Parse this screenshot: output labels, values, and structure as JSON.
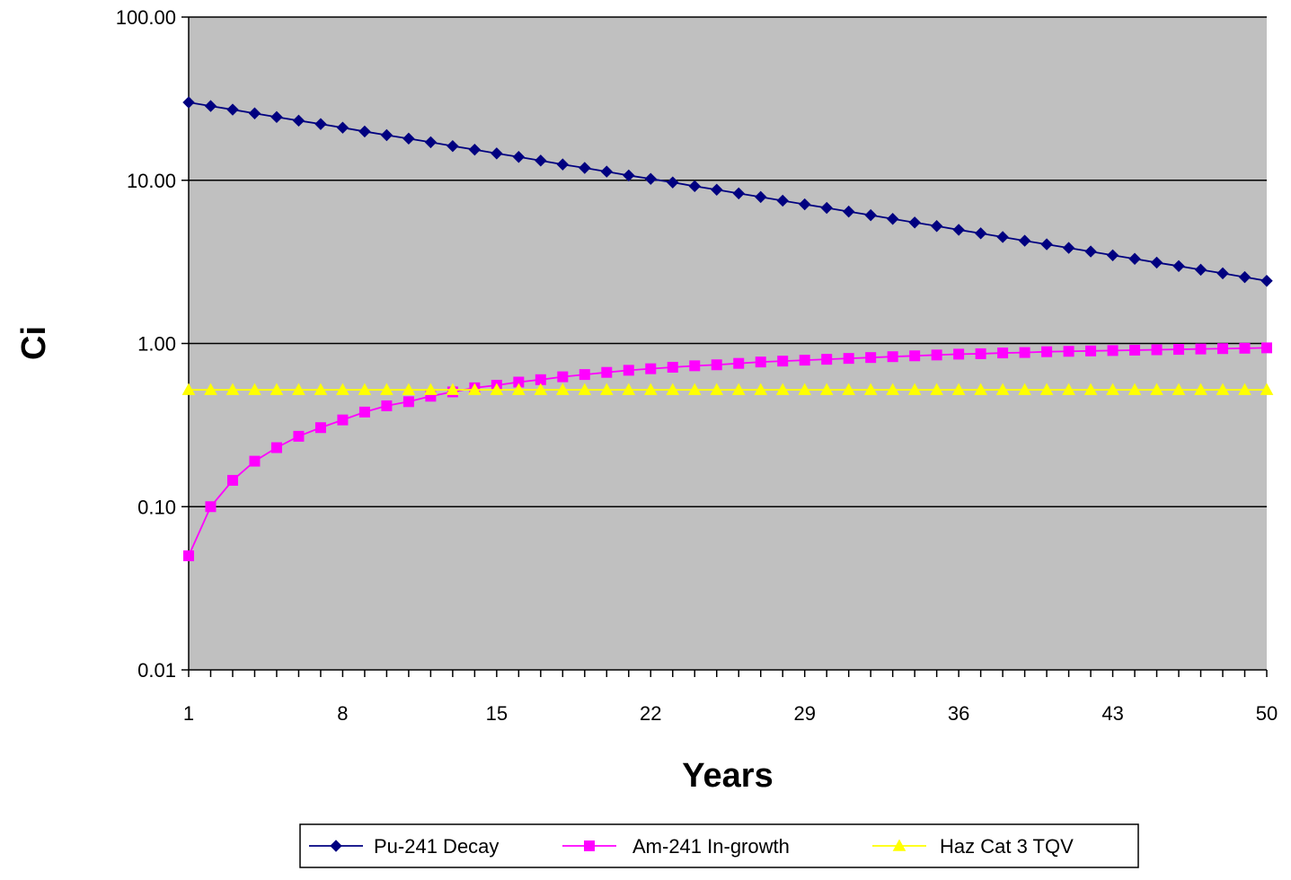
{
  "chart_data": {
    "type": "line",
    "title": "",
    "xlabel": "Years",
    "ylabel": "Ci",
    "y_scale": "log",
    "ylim": [
      0.01,
      100
    ],
    "y_ticks": [
      0.01,
      0.1,
      1,
      10,
      100
    ],
    "y_tick_labels": [
      "0.01",
      "0.10",
      "1.00",
      "10.00",
      "100.00"
    ],
    "xlim": [
      1,
      50
    ],
    "x_ticks": [
      1,
      8,
      15,
      22,
      29,
      36,
      43,
      50
    ],
    "x_tick_labels": [
      "1",
      "8",
      "15",
      "22",
      "29",
      "36",
      "43",
      "50"
    ],
    "grid": "horizontal major gridlines",
    "plot_background": "#c0c0c0",
    "legend_position": "bottom",
    "x": [
      1,
      2,
      3,
      4,
      5,
      6,
      7,
      8,
      9,
      10,
      11,
      12,
      13,
      14,
      15,
      16,
      17,
      18,
      19,
      20,
      21,
      22,
      23,
      24,
      25,
      26,
      27,
      28,
      29,
      30,
      31,
      32,
      33,
      34,
      35,
      36,
      37,
      38,
      39,
      40,
      41,
      42,
      43,
      44,
      45,
      46,
      47,
      48,
      49,
      50
    ],
    "series": [
      {
        "name": "Pu-241 Decay",
        "color": "#000080",
        "marker": "diamond",
        "values": [
          30.0,
          28.5,
          27.1,
          25.7,
          24.4,
          23.2,
          22.1,
          21.0,
          19.9,
          18.9,
          18.0,
          17.1,
          16.2,
          15.4,
          14.6,
          13.9,
          13.2,
          12.5,
          11.9,
          11.3,
          10.7,
          10.2,
          9.7,
          9.2,
          8.75,
          8.31,
          7.9,
          7.5,
          7.12,
          6.77,
          6.43,
          6.11,
          5.8,
          5.51,
          5.24,
          4.97,
          4.73,
          4.49,
          4.26,
          4.05,
          3.85,
          3.66,
          3.47,
          3.3,
          3.13,
          2.98,
          2.83,
          2.69,
          2.55,
          2.42
        ]
      },
      {
        "name": "Am-241 In-growth",
        "color": "#ff00ff",
        "marker": "square",
        "values": [
          0.05,
          0.1,
          0.145,
          0.19,
          0.23,
          0.27,
          0.305,
          0.34,
          0.38,
          0.415,
          0.44,
          0.475,
          0.505,
          0.535,
          0.555,
          0.58,
          0.6,
          0.625,
          0.645,
          0.665,
          0.685,
          0.7,
          0.715,
          0.73,
          0.74,
          0.755,
          0.77,
          0.78,
          0.79,
          0.8,
          0.81,
          0.82,
          0.83,
          0.84,
          0.85,
          0.86,
          0.865,
          0.875,
          0.88,
          0.89,
          0.895,
          0.9,
          0.905,
          0.91,
          0.915,
          0.92,
          0.925,
          0.93,
          0.935,
          0.94
        ]
      },
      {
        "name": "Haz Cat 3 TQV",
        "color": "#ffff00",
        "marker": "triangle",
        "values": [
          0.52,
          0.52,
          0.52,
          0.52,
          0.52,
          0.52,
          0.52,
          0.52,
          0.52,
          0.52,
          0.52,
          0.52,
          0.52,
          0.52,
          0.52,
          0.52,
          0.52,
          0.52,
          0.52,
          0.52,
          0.52,
          0.52,
          0.52,
          0.52,
          0.52,
          0.52,
          0.52,
          0.52,
          0.52,
          0.52,
          0.52,
          0.52,
          0.52,
          0.52,
          0.52,
          0.52,
          0.52,
          0.52,
          0.52,
          0.52,
          0.52,
          0.52,
          0.52,
          0.52,
          0.52,
          0.52,
          0.52,
          0.52,
          0.52,
          0.52
        ]
      }
    ]
  }
}
